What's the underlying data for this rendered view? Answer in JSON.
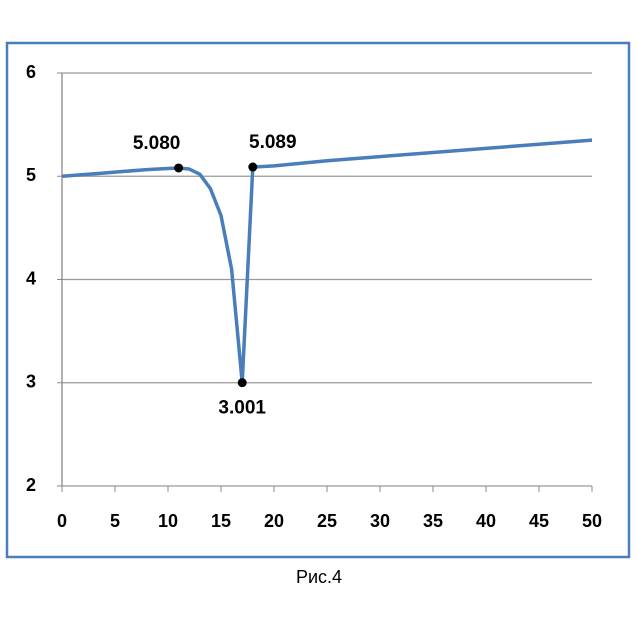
{
  "chart_data": {
    "type": "line",
    "x": [
      0,
      2,
      4,
      6,
      8,
      10,
      11,
      12,
      13,
      14,
      15,
      16,
      17,
      18,
      20,
      25,
      30,
      35,
      40,
      45,
      50
    ],
    "series": [
      {
        "color": "#4a7ebb",
        "values": [
          5.0,
          5.016,
          5.032,
          5.048,
          5.064,
          5.075,
          5.08,
          5.07,
          5.02,
          4.88,
          4.62,
          4.1,
          3.001,
          5.089,
          5.1,
          5.15,
          5.19,
          5.23,
          5.27,
          5.31,
          5.35
        ]
      }
    ],
    "annotations": [
      {
        "x": 11,
        "y": 5.08,
        "label": "5.080"
      },
      {
        "x": 17,
        "y": 3.001,
        "label": "3.001"
      },
      {
        "x": 18,
        "y": 5.089,
        "label": "5.089"
      }
    ],
    "xlim": [
      0,
      50
    ],
    "xticks": [
      0,
      5,
      10,
      15,
      20,
      25,
      30,
      35,
      40,
      45,
      50
    ],
    "ylim": [
      2,
      6
    ],
    "yticks": [
      2,
      3,
      4,
      5,
      6
    ],
    "grid": true,
    "caption": "Рис.4"
  }
}
